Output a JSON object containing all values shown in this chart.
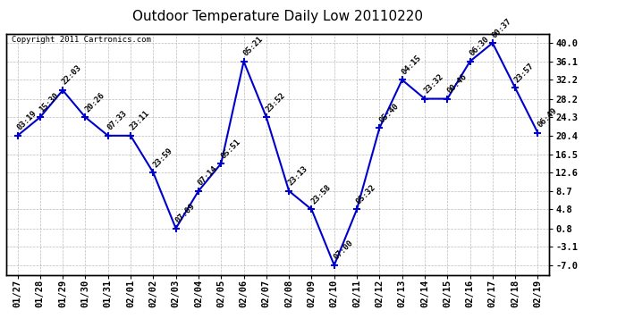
{
  "title": "Outdoor Temperature Daily Low 20110220",
  "copyright": "Copyright 2011 Cartronics.com",
  "line_color": "#0000cc",
  "marker_color": "#0000cc",
  "bg_color": "#ffffff",
  "grid_color": "#aaaaaa",
  "x_labels": [
    "01/27",
    "01/28",
    "01/29",
    "01/30",
    "01/31",
    "02/01",
    "02/02",
    "02/03",
    "02/04",
    "02/05",
    "02/06",
    "02/07",
    "02/08",
    "02/09",
    "02/10",
    "02/11",
    "02/12",
    "02/13",
    "02/14",
    "02/15",
    "02/16",
    "02/17",
    "02/18",
    "02/19"
  ],
  "y_values": [
    20.4,
    24.3,
    30.0,
    24.3,
    20.4,
    20.4,
    12.6,
    0.8,
    8.7,
    14.5,
    36.1,
    24.3,
    8.7,
    4.8,
    -7.0,
    4.8,
    22.0,
    32.2,
    28.2,
    28.2,
    36.1,
    40.0,
    30.5,
    21.0
  ],
  "point_labels": [
    "03:19",
    "15:30",
    "22:03",
    "20:26",
    "07:33",
    "23:11",
    "23:59",
    "07:09",
    "07:14",
    "05:51",
    "05:21",
    "23:52",
    "23:13",
    "23:58",
    "07:00",
    "05:32",
    "05:40",
    "04:15",
    "23:32",
    "00:46",
    "06:30",
    "00:37",
    "23:57",
    "06:49"
  ],
  "yticks": [
    -7.0,
    -3.1,
    0.8,
    4.8,
    8.7,
    12.6,
    16.5,
    20.4,
    24.3,
    28.2,
    32.2,
    36.1,
    40.0
  ],
  "ylim": [
    -9.0,
    42.0
  ],
  "title_fontsize": 11,
  "label_fontsize": 6.5,
  "tick_fontsize": 7.5,
  "copyright_fontsize": 6.5
}
